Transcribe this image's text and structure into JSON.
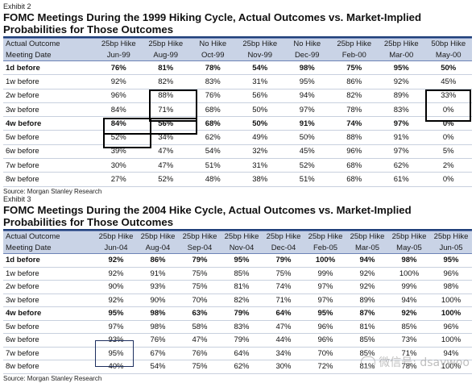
{
  "exhibit1": {
    "label": "Exhibit 2",
    "title_line1": "FOMC Meetings During the 1999 Hiking Cycle, Actual Outcomes vs. Market-Implied",
    "title_line2": "Probabilities for Those Outcomes",
    "header_outcomes": [
      "Actual Outcome",
      "25bp Hike",
      "25bp Hike",
      "No Hike",
      "25bp Hike",
      "No Hike",
      "25bp Hike",
      "25bp Hike",
      "50bp Hike"
    ],
    "header_dates": [
      "Meeting Date",
      "Jun-99",
      "Aug-99",
      "Oct-99",
      "Nov-99",
      "Dec-99",
      "Feb-00",
      "Mar-00",
      "May-00"
    ],
    "rows": [
      {
        "label": "1d before",
        "bold": true,
        "values": [
          "76%",
          "81%",
          "78%",
          "54%",
          "98%",
          "75%",
          "95%",
          "50%"
        ]
      },
      {
        "label": "1w before",
        "bold": false,
        "values": [
          "92%",
          "82%",
          "83%",
          "31%",
          "95%",
          "86%",
          "92%",
          "45%"
        ]
      },
      {
        "label": "2w before",
        "bold": false,
        "values": [
          "96%",
          "88%",
          "76%",
          "56%",
          "94%",
          "82%",
          "89%",
          "33%"
        ]
      },
      {
        "label": "3w before",
        "bold": false,
        "values": [
          "84%",
          "71%",
          "68%",
          "50%",
          "97%",
          "78%",
          "83%",
          "0%"
        ]
      },
      {
        "label": "4w before",
        "bold": true,
        "values": [
          "84%",
          "56%",
          "68%",
          "50%",
          "91%",
          "74%",
          "97%",
          "0%"
        ]
      },
      {
        "label": "5w before",
        "bold": false,
        "values": [
          "52%",
          "34%",
          "62%",
          "49%",
          "50%",
          "88%",
          "91%",
          "0%"
        ]
      },
      {
        "label": "6w before",
        "bold": false,
        "values": [
          "39%",
          "47%",
          "54%",
          "32%",
          "45%",
          "96%",
          "97%",
          "5%"
        ]
      },
      {
        "label": "7w before",
        "bold": false,
        "values": [
          "30%",
          "47%",
          "51%",
          "31%",
          "52%",
          "68%",
          "62%",
          "2%"
        ]
      },
      {
        "label": "8w before",
        "bold": false,
        "values": [
          "27%",
          "52%",
          "48%",
          "38%",
          "51%",
          "68%",
          "61%",
          "0%"
        ]
      }
    ],
    "source": "Source: Morgan Stanley Research"
  },
  "exhibit2": {
    "label": "Exhibit 3",
    "title_line1": "FOMC Meetings During the 2004 Hike Cycle, Actual Outcomes vs. Market-Implied",
    "title_line2": "Probabilities for Those Outcomes",
    "header_outcomes": [
      "Actual Outcome",
      "25bp Hike",
      "25bp Hike",
      "25bp Hike",
      "25bp Hike",
      "25bp Hike",
      "25bp Hike",
      "25bp Hike",
      "25bp Hike",
      "25bp Hike"
    ],
    "header_dates": [
      "Meeting Date",
      "Jun-04",
      "Aug-04",
      "Sep-04",
      "Nov-04",
      "Dec-04",
      "Feb-05",
      "Mar-05",
      "May-05",
      "Jun-05"
    ],
    "rows": [
      {
        "label": "1d before",
        "bold": true,
        "values": [
          "92%",
          "86%",
          "79%",
          "95%",
          "79%",
          "100%",
          "94%",
          "98%",
          "95%"
        ]
      },
      {
        "label": "1w before",
        "bold": false,
        "values": [
          "92%",
          "91%",
          "75%",
          "85%",
          "75%",
          "99%",
          "92%",
          "100%",
          "96%"
        ]
      },
      {
        "label": "2w before",
        "bold": false,
        "values": [
          "90%",
          "93%",
          "75%",
          "81%",
          "74%",
          "97%",
          "92%",
          "99%",
          "98%"
        ]
      },
      {
        "label": "3w before",
        "bold": false,
        "values": [
          "92%",
          "90%",
          "70%",
          "82%",
          "71%",
          "97%",
          "89%",
          "94%",
          "100%"
        ]
      },
      {
        "label": "4w before",
        "bold": true,
        "values": [
          "95%",
          "98%",
          "63%",
          "79%",
          "64%",
          "95%",
          "87%",
          "92%",
          "100%"
        ]
      },
      {
        "label": "5w before",
        "bold": false,
        "values": [
          "97%",
          "98%",
          "58%",
          "83%",
          "47%",
          "96%",
          "81%",
          "85%",
          "96%"
        ]
      },
      {
        "label": "6w before",
        "bold": false,
        "values": [
          "93%",
          "76%",
          "47%",
          "79%",
          "44%",
          "96%",
          "85%",
          "73%",
          "100%"
        ]
      },
      {
        "label": "7w before",
        "bold": false,
        "values": [
          "95%",
          "67%",
          "76%",
          "64%",
          "34%",
          "70%",
          "85%",
          "71%",
          "94%"
        ]
      },
      {
        "label": "8w before",
        "bold": false,
        "values": [
          "40%",
          "54%",
          "75%",
          "62%",
          "30%",
          "72%",
          "81%",
          "78%",
          "100%"
        ]
      }
    ],
    "source": "Source: Morgan Stanley Research"
  },
  "watermark": "微信号: dsaywoo",
  "colors": {
    "header_bg": "#c9d3e6",
    "rule": "#1f3f7a",
    "box": "#000000"
  }
}
